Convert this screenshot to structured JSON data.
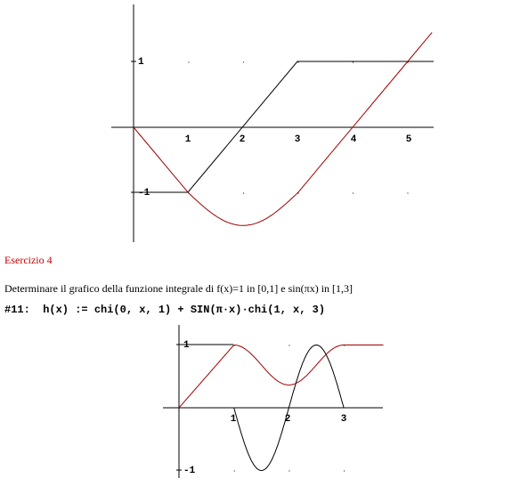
{
  "plot1": {
    "xticks": [
      "1",
      "2",
      "3",
      "4",
      "5"
    ],
    "yticks": [
      "1",
      "-1"
    ]
  },
  "exercise": {
    "title": "Esercizio 4",
    "text": "Determinare il grafico della funzione integrale di f(x)=1 in [0,1] e sin(πx) in [1,3]",
    "command": "#11:  h(x) := chi(0, x, 1) + SIN(π·x)·chi(1, x, 3)"
  },
  "plot2": {
    "xticks": [
      "1",
      "2",
      "3"
    ],
    "yticks": [
      "1",
      "-1"
    ]
  }
}
